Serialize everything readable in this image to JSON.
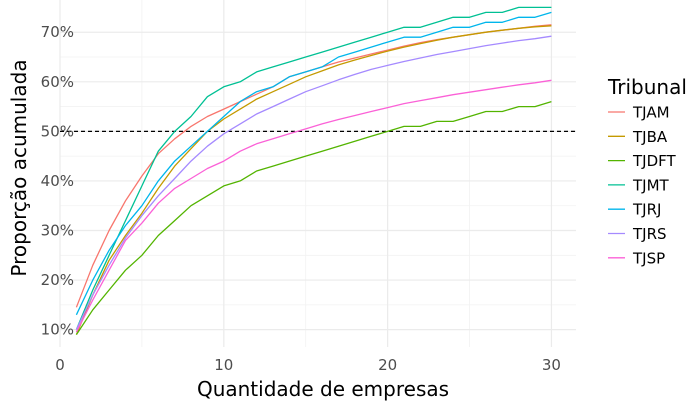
{
  "chart_data": {
    "type": "line",
    "xlabel": "Quantidade de empresas",
    "ylabel": "Proporção acumulada",
    "xlim": [
      0,
      31.5
    ],
    "ylim": [
      0.065,
      0.765
    ],
    "x_ticks": [
      0,
      10,
      20,
      30
    ],
    "x_tick_labels": [
      "0",
      "10",
      "20",
      "30"
    ],
    "y_ticks": [
      0.1,
      0.2,
      0.3,
      0.4,
      0.5,
      0.6,
      0.7
    ],
    "y_tick_labels": [
      "10%",
      "20%",
      "30%",
      "40%",
      "50%",
      "60%",
      "70%"
    ],
    "grid": true,
    "reference_line": {
      "y": 0.5,
      "style": "dashed",
      "color": "#000000"
    },
    "legend": {
      "title": "Tribunal",
      "position": "right"
    },
    "x": [
      1,
      2,
      3,
      4,
      5,
      6,
      7,
      8,
      9,
      10,
      11,
      12,
      13,
      14,
      15,
      16,
      17,
      18,
      19,
      20,
      21,
      22,
      23,
      24,
      25,
      26,
      27,
      28,
      29,
      30
    ],
    "series": [
      {
        "name": "TJAM",
        "color": "#F8766D",
        "values": [
          0.145,
          0.23,
          0.3,
          0.36,
          0.41,
          0.455,
          0.485,
          0.51,
          0.53,
          0.545,
          0.56,
          0.575,
          0.59,
          0.61,
          0.62,
          0.63,
          0.64,
          0.648,
          0.656,
          0.664,
          0.672,
          0.679,
          0.685,
          0.69,
          0.695,
          0.7,
          0.704,
          0.708,
          0.712,
          0.715
        ]
      },
      {
        "name": "TJBA",
        "color": "#C49A00",
        "values": [
          0.09,
          0.17,
          0.24,
          0.29,
          0.335,
          0.385,
          0.43,
          0.465,
          0.5,
          0.525,
          0.545,
          0.565,
          0.58,
          0.595,
          0.61,
          0.622,
          0.634,
          0.644,
          0.653,
          0.662,
          0.67,
          0.677,
          0.684,
          0.69,
          0.695,
          0.7,
          0.704,
          0.708,
          0.711,
          0.713
        ]
      },
      {
        "name": "TJDFT",
        "color": "#53B400",
        "values": [
          0.09,
          0.14,
          0.18,
          0.22,
          0.25,
          0.29,
          0.32,
          0.35,
          0.37,
          0.39,
          0.4,
          0.42,
          0.43,
          0.44,
          0.45,
          0.46,
          0.47,
          0.48,
          0.49,
          0.5,
          0.51,
          0.51,
          0.52,
          0.52,
          0.53,
          0.54,
          0.54,
          0.55,
          0.55,
          0.56
        ]
      },
      {
        "name": "TJMT",
        "color": "#00C094",
        "values": [
          0.1,
          0.18,
          0.25,
          0.32,
          0.39,
          0.46,
          0.5,
          0.53,
          0.57,
          0.59,
          0.6,
          0.62,
          0.63,
          0.64,
          0.65,
          0.66,
          0.67,
          0.68,
          0.69,
          0.7,
          0.71,
          0.71,
          0.72,
          0.73,
          0.73,
          0.74,
          0.74,
          0.75,
          0.75,
          0.75
        ]
      },
      {
        "name": "TJRJ",
        "color": "#00B6EB",
        "values": [
          0.13,
          0.2,
          0.26,
          0.31,
          0.35,
          0.4,
          0.44,
          0.47,
          0.5,
          0.53,
          0.56,
          0.58,
          0.59,
          0.61,
          0.62,
          0.63,
          0.65,
          0.66,
          0.67,
          0.68,
          0.69,
          0.69,
          0.7,
          0.71,
          0.71,
          0.72,
          0.72,
          0.73,
          0.73,
          0.74
        ]
      },
      {
        "name": "TJRS",
        "color": "#A58AFF",
        "values": [
          0.1,
          0.17,
          0.23,
          0.285,
          0.33,
          0.37,
          0.405,
          0.44,
          0.47,
          0.495,
          0.515,
          0.535,
          0.55,
          0.565,
          0.58,
          0.592,
          0.604,
          0.615,
          0.625,
          0.633,
          0.641,
          0.648,
          0.655,
          0.661,
          0.667,
          0.673,
          0.678,
          0.683,
          0.687,
          0.692
        ]
      },
      {
        "name": "TJSP",
        "color": "#FB61D7",
        "values": [
          0.095,
          0.16,
          0.22,
          0.28,
          0.315,
          0.355,
          0.385,
          0.405,
          0.425,
          0.44,
          0.46,
          0.475,
          0.485,
          0.495,
          0.505,
          0.515,
          0.524,
          0.532,
          0.54,
          0.548,
          0.556,
          0.562,
          0.568,
          0.574,
          0.579,
          0.584,
          0.589,
          0.594,
          0.598,
          0.603
        ]
      }
    ]
  }
}
